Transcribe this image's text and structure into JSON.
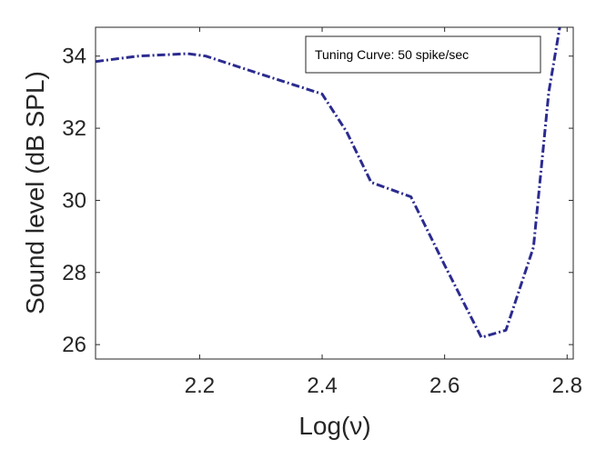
{
  "chart_data": {
    "type": "line",
    "xlabel": "Log(ν)",
    "ylabel": "Sound level (dB SPL)",
    "xlim": [
      2.03,
      2.81
    ],
    "ylim": [
      25.6,
      34.8
    ],
    "xticks": [
      2.2,
      2.4,
      2.6,
      2.8
    ],
    "yticks": [
      26,
      28,
      30,
      32,
      34
    ],
    "grid": false,
    "legend_position": "top-right",
    "series": [
      {
        "name": "Tuning Curve: 50 spike/sec",
        "color": "#2b2b8f",
        "line_style": "dash-dot",
        "x": [
          2.03,
          2.1,
          2.18,
          2.21,
          2.3,
          2.4,
          2.44,
          2.48,
          2.545,
          2.6,
          2.66,
          2.7,
          2.745,
          2.77,
          2.79
        ],
        "y": [
          33.85,
          34.0,
          34.07,
          34.0,
          33.5,
          32.95,
          31.9,
          30.5,
          30.1,
          28.2,
          26.2,
          26.4,
          28.7,
          33.0,
          35.0
        ]
      }
    ]
  }
}
